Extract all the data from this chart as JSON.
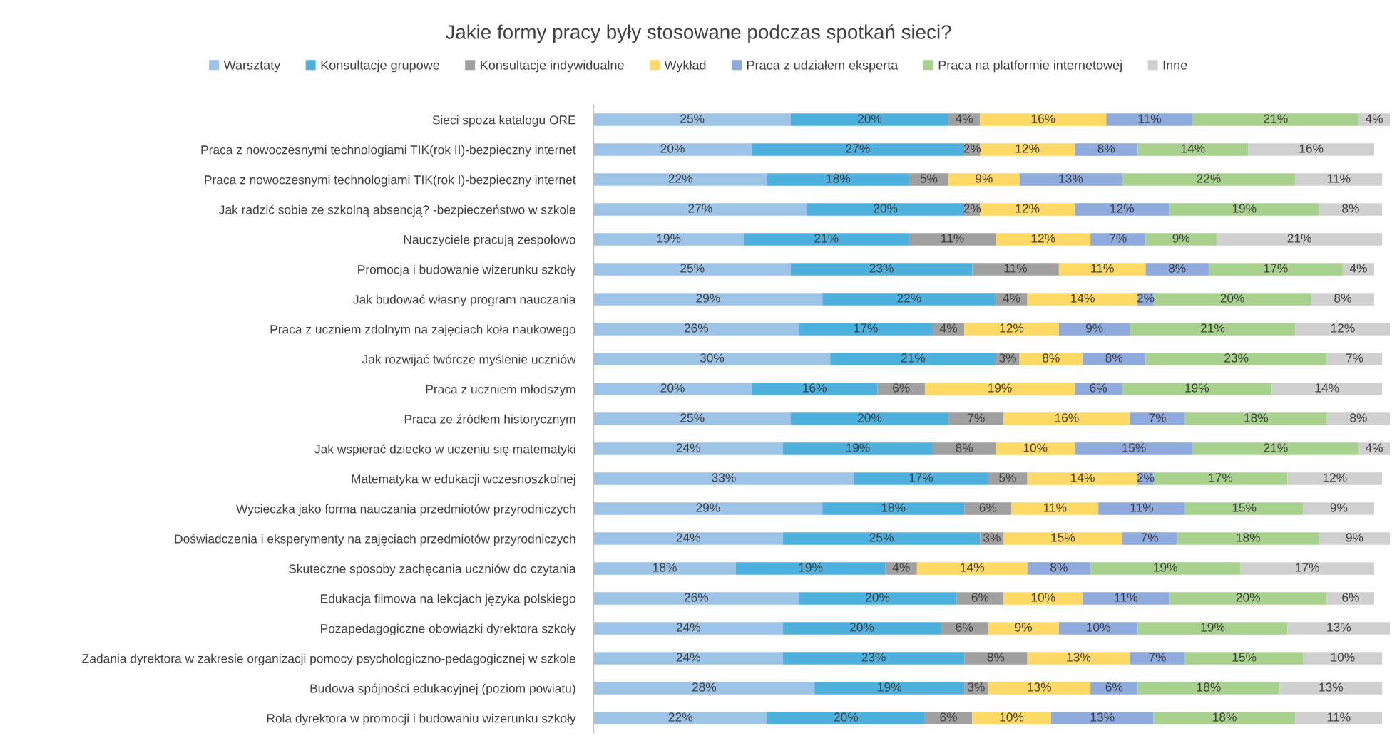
{
  "chart_data": {
    "type": "bar",
    "orientation": "horizontal",
    "stacked": true,
    "title": "Jakie formy pracy były stosowane podczas spotkań sieci?",
    "legend": "top",
    "grid": false,
    "tick_labels": "y",
    "categories": [
      "Sieci spoza katalogu ORE",
      "Praca z nowoczesnymi technologiami TIK(rok II)-bezpieczny internet",
      "Praca z nowoczesnymi technologiami TIK(rok I)-bezpieczny internet",
      "Jak radzić sobie ze szkolną absencją? -bezpieczeństwo w szkole",
      "Nauczyciele pracują zespołowo",
      "Promocja i budowanie wizerunku szkoły",
      "Jak budować własny program nauczania",
      "Praca z uczniem zdolnym na zajęciach koła naukowego",
      "Jak rozwijać twórcze myślenie uczniów",
      "Praca z uczniem młodszym",
      "Praca ze źródłem historycznym",
      "Jak wspierać dziecko w uczeniu się matematyki",
      "Matematyka w edukacji wczesnoszkolnej",
      "Wycieczka jako forma nauczania przedmiotów przyrodniczych",
      "Doświadczenia i eksperymenty na zajęciach przedmiotów przyrodniczych",
      "Skuteczne sposoby zachęcania uczniów do czytania",
      "Edukacja filmowa na lekcjach języka polskiego",
      "Pozapedagogiczne obowiązki dyrektora szkoły",
      "Zadania dyrektora w zakresie organizacji pomocy psychologiczno-pedagogicznej w szkole",
      "Budowa spójności edukacyjnej (poziom powiatu)",
      "Rola dyrektora w promocji i budowaniu wizerunku szkoły"
    ],
    "series": [
      {
        "name": "Warsztaty",
        "color": "#9dc3e6",
        "values": [
          25,
          20,
          22,
          27,
          19,
          25,
          29,
          26,
          30,
          20,
          25,
          24,
          33,
          29,
          24,
          18,
          26,
          24,
          24,
          28,
          22
        ],
        "value_labels": [
          "25%",
          "20%",
          "22%",
          "27%",
          "19%",
          "25%",
          "29%",
          "26%",
          "30%",
          "20%",
          "25%",
          "24%",
          "33%",
          "29%",
          "24%",
          "18%",
          "26%",
          "24%",
          "24%",
          "28%",
          "22%"
        ]
      },
      {
        "name": "Konsultacje grupowe",
        "color": "#4eb1dd",
        "values": [
          20,
          27,
          18,
          20,
          21,
          23,
          22,
          17,
          21,
          16,
          20,
          19,
          17,
          18,
          25,
          19,
          20,
          20,
          23,
          19,
          20
        ],
        "value_labels": [
          "20%",
          "27%",
          "18%",
          "20%",
          "21%",
          "23%",
          "22%",
          "17%",
          "21%",
          "16%",
          "20%",
          "19%",
          "17%",
          "18%",
          "25%",
          "19%",
          "20%",
          "20%",
          "23%",
          "19%",
          "20%"
        ]
      },
      {
        "name": "Konsultacje indywidualne",
        "color": "#a0a0a0",
        "values": [
          4,
          2,
          5,
          2,
          11,
          11,
          4,
          4,
          3,
          6,
          7,
          8,
          5,
          6,
          3,
          4,
          6,
          6,
          8,
          3,
          6
        ],
        "value_labels": [
          "4%",
          "2%",
          "5%",
          "2%",
          "11%",
          "11%",
          "4%",
          "4%",
          "3%",
          "6%",
          "7%",
          "8%",
          "5%",
          "6%",
          "3%",
          "4%",
          "6%",
          "6%",
          "8%",
          "3%",
          "6%"
        ]
      },
      {
        "name": "Wykład",
        "color": "#ffd966",
        "values": [
          16,
          12,
          9,
          12,
          12,
          11,
          14,
          12,
          8,
          19,
          16,
          10,
          14,
          11,
          15,
          14,
          10,
          9,
          13,
          13,
          10
        ],
        "value_labels": [
          "16%",
          "12%",
          "9%",
          "12%",
          "12%",
          "11%",
          "14%",
          "12%",
          "8%",
          "19%",
          "16%",
          "10%",
          "14%",
          "11%",
          "15%",
          "14%",
          "10%",
          "9%",
          "13%",
          "13%",
          "10%"
        ]
      },
      {
        "name": "Praca z udziałem eksperta",
        "color": "#8faadc",
        "values": [
          11,
          8,
          13,
          12,
          7,
          8,
          2,
          9,
          8,
          6,
          7,
          15,
          2,
          11,
          7,
          8,
          11,
          10,
          7,
          6,
          13
        ],
        "value_labels": [
          "11%",
          "8%",
          "13%",
          "12%",
          "7%",
          "8%",
          "2%",
          "9%",
          "8%",
          "6%",
          "7%",
          "15%",
          "2%",
          "11%",
          "7%",
          "8%",
          "11%",
          "10%",
          "7%",
          "6%",
          "13%"
        ]
      },
      {
        "name": "Praca na platformie internetowej",
        "color": "#a9d18e",
        "values": [
          21,
          14,
          22,
          19,
          9,
          17,
          20,
          21,
          23,
          19,
          18,
          21,
          17,
          15,
          18,
          19,
          20,
          19,
          15,
          18,
          18
        ],
        "value_labels": [
          "21%",
          "14%",
          "22%",
          "19%",
          "9%",
          "17%",
          "20%",
          "21%",
          "23%",
          "19%",
          "18%",
          "21%",
          "17%",
          "15%",
          "18%",
          "19%",
          "20%",
          "19%",
          "15%",
          "18%",
          "18%"
        ]
      },
      {
        "name": "Inne",
        "color": "#d0d0d0",
        "values": [
          4,
          16,
          11,
          8,
          21,
          4,
          8,
          12,
          7,
          14,
          8,
          4,
          12,
          9,
          9,
          17,
          6,
          13,
          10,
          13,
          11
        ],
        "value_labels": [
          "4%",
          "16%",
          "11%",
          "8%",
          "21%",
          "4%",
          "8%",
          "12%",
          "7%",
          "14%",
          "8%",
          "4%",
          "12%",
          "9%",
          "9%",
          "17%",
          "6%",
          "13%",
          "10%",
          "13%",
          "11%"
        ]
      }
    ]
  }
}
